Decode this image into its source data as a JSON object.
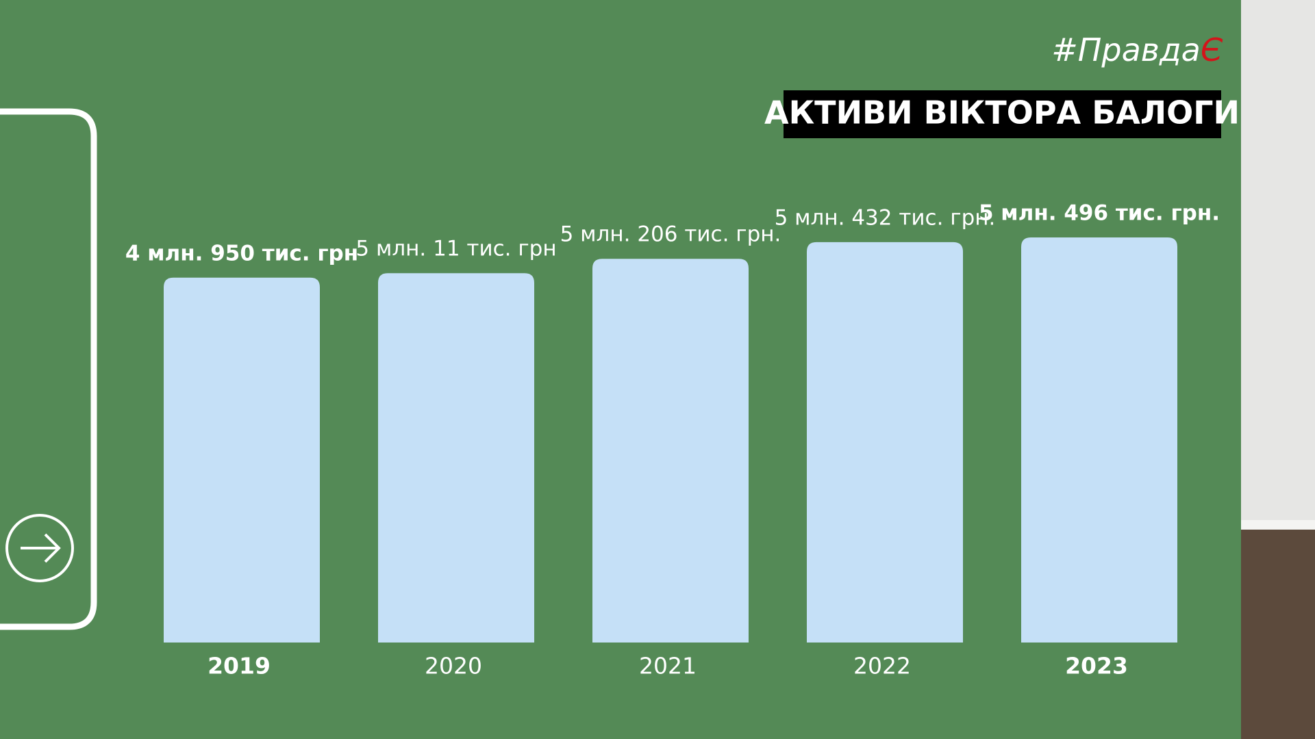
{
  "brand": {
    "prefix": "#Правда",
    "mark": "Є"
  },
  "chart_data": {
    "type": "bar",
    "title": "АКТИВИ ВІКТОРА БАЛОГИ",
    "categories": [
      "2019",
      "2020",
      "2021",
      "2022",
      "2023"
    ],
    "values": [
      4950000,
      5011000,
      5206000,
      5432000,
      5496000
    ],
    "value_labels": [
      "4 млн. 950 тис. грн",
      "5 млн. 11 тис. грн",
      "5 млн. 206 тис. грн.",
      "5 млн. 432 тис. грн.",
      "5 млн. 496 тис. грн."
    ],
    "color": "#c5e0f7"
  }
}
